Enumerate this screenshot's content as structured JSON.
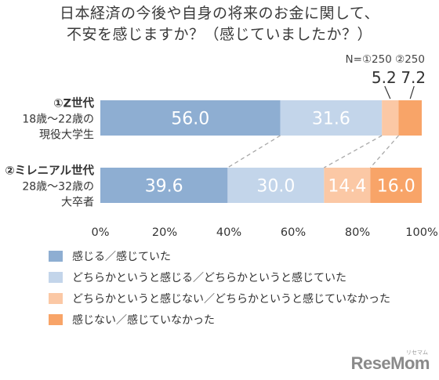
{
  "title_line1": "日本経済の今後や自身の将来のお金に関して、",
  "title_line2": "不安を感じますか？（感じていましたか？）",
  "sample_note": "N=①250 ②250",
  "brand": "ReseMom",
  "brand_sub": "リセマム",
  "chart_data": {
    "type": "bar",
    "orientation": "horizontal",
    "stacked": true,
    "categories": [
      {
        "line1": "①Z世代",
        "line2": "18歳〜22歳の",
        "line3": "現役大学生"
      },
      {
        "line1": "②ミレニアル世代",
        "line2": "28歳〜32歳の",
        "line3": "大卒者"
      }
    ],
    "series": [
      {
        "name": "感じる／感じていた",
        "values": [
          56.0,
          39.6
        ],
        "color": "#8eaed2",
        "label_color": "#ffffff"
      },
      {
        "name": "どちらかというと感じる／どちらかというと感じていた",
        "values": [
          31.6,
          30.0
        ],
        "color": "#c3d5ea",
        "label_color": "#ffffff"
      },
      {
        "name": "どちらかというと感じない／どちらかというと感じていなかった",
        "values": [
          5.2,
          14.4
        ],
        "color": "#fbc8a5",
        "label_color": "#ffffff"
      },
      {
        "name": "感じない／感じていなかった",
        "values": [
          7.2,
          16.0
        ],
        "color": "#f8a468",
        "label_color": "#ffffff"
      }
    ],
    "xlim": [
      0,
      100
    ],
    "xticks": [
      "0%",
      "20%",
      "40%",
      "60%",
      "80%",
      "100%"
    ],
    "connector_lines": "dashed",
    "grid": false,
    "legend_position": "bottom-left"
  }
}
